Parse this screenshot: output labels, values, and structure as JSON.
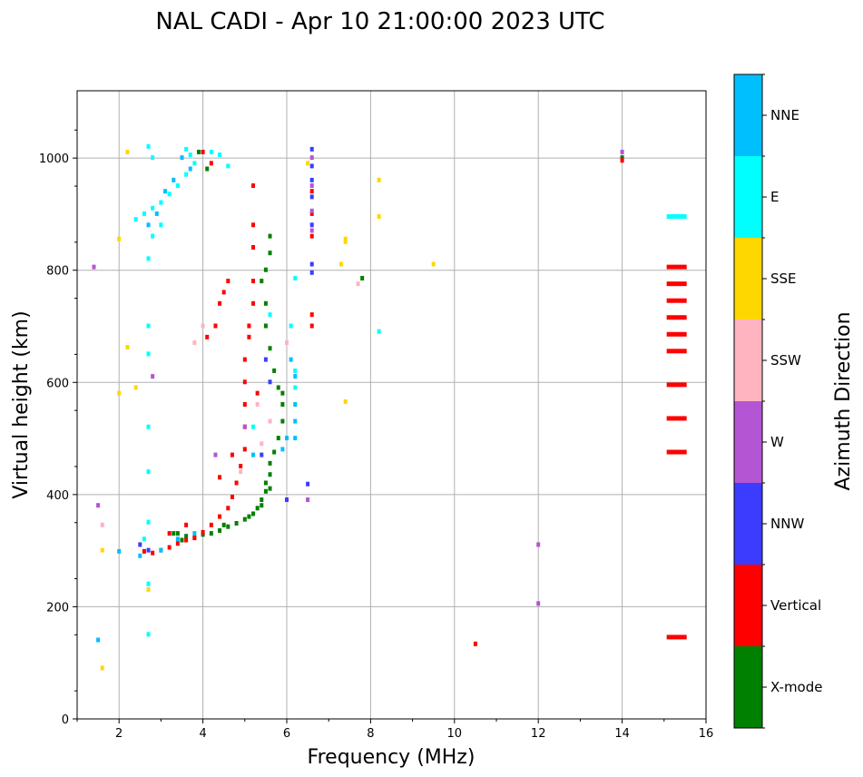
{
  "chart_data": {
    "type": "scatter",
    "title": "NAL CADI - Apr 10 21:00:00 2023 UTC",
    "xlabel": "Frequency (MHz)",
    "ylabel": "Virtual height (km)",
    "xlim": [
      1,
      16
    ],
    "ylim": [
      0,
      1120
    ],
    "xticks": [
      2,
      4,
      6,
      8,
      10,
      12,
      14,
      16
    ],
    "yticks": [
      0,
      200,
      400,
      600,
      800,
      1000
    ],
    "grid": true,
    "colorbar": {
      "label": "Azimuth Direction",
      "categories": [
        {
          "name": "X-mode",
          "color": "#008000"
        },
        {
          "name": "Vertical",
          "color": "#ff0000"
        },
        {
          "name": "NNW",
          "color": "#3c3cff"
        },
        {
          "name": "W",
          "color": "#b455d4"
        },
        {
          "name": "SSW",
          "color": "#ffb4c0"
        },
        {
          "name": "SSE",
          "color": "#ffd700"
        },
        {
          "name": "E",
          "color": "#00ffff"
        },
        {
          "name": "NNE",
          "color": "#00bfff"
        }
      ]
    },
    "series": [
      {
        "name": "X-mode",
        "points": [
          [
            3.4,
            330
          ],
          [
            3.6,
            325
          ],
          [
            3.8,
            322
          ],
          [
            4.0,
            328
          ],
          [
            4.2,
            330
          ],
          [
            4.4,
            335
          ],
          [
            4.6,
            342
          ],
          [
            4.8,
            348
          ],
          [
            5.0,
            355
          ],
          [
            5.2,
            365
          ],
          [
            5.3,
            375
          ],
          [
            5.4,
            390
          ],
          [
            5.5,
            405
          ],
          [
            5.5,
            420
          ],
          [
            5.6,
            435
          ],
          [
            5.6,
            455
          ],
          [
            5.7,
            475
          ],
          [
            5.8,
            500
          ],
          [
            5.9,
            530
          ],
          [
            5.9,
            560
          ],
          [
            5.8,
            590
          ],
          [
            5.7,
            620
          ],
          [
            5.6,
            660
          ],
          [
            5.5,
            700
          ],
          [
            5.5,
            740
          ],
          [
            5.4,
            780
          ],
          [
            5.5,
            800
          ],
          [
            5.6,
            830
          ],
          [
            5.6,
            860
          ],
          [
            3.3,
            330
          ],
          [
            3.5,
            318
          ],
          [
            4.5,
            345
          ],
          [
            5.1,
            360
          ],
          [
            5.4,
            380
          ],
          [
            5.6,
            410
          ],
          [
            5.9,
            580
          ],
          [
            4.1,
            980
          ],
          [
            3.9,
            1010
          ],
          [
            14.0,
            1000
          ],
          [
            7.8,
            785
          ]
        ]
      },
      {
        "name": "Vertical",
        "points": [
          [
            2.8,
            295
          ],
          [
            3.0,
            300
          ],
          [
            3.2,
            305
          ],
          [
            3.4,
            312
          ],
          [
            3.6,
            318
          ],
          [
            3.8,
            322
          ],
          [
            4.0,
            332
          ],
          [
            4.2,
            345
          ],
          [
            4.4,
            360
          ],
          [
            4.6,
            375
          ],
          [
            4.7,
            395
          ],
          [
            4.8,
            420
          ],
          [
            4.9,
            450
          ],
          [
            5.0,
            480
          ],
          [
            5.0,
            520
          ],
          [
            5.0,
            560
          ],
          [
            5.0,
            600
          ],
          [
            5.0,
            640
          ],
          [
            5.1,
            680
          ],
          [
            5.1,
            700
          ],
          [
            5.2,
            740
          ],
          [
            5.2,
            780
          ],
          [
            4.6,
            780
          ],
          [
            4.4,
            740
          ],
          [
            4.3,
            700
          ],
          [
            4.1,
            680
          ],
          [
            4.5,
            760
          ],
          [
            6.6,
            860
          ],
          [
            6.6,
            900
          ],
          [
            6.6,
            940
          ],
          [
            6.6,
            720
          ],
          [
            6.6,
            700
          ],
          [
            5.2,
            950
          ],
          [
            5.2,
            880
          ],
          [
            5.2,
            840
          ],
          [
            4.0,
            1010
          ],
          [
            4.2,
            990
          ],
          [
            15.3,
            805
          ],
          [
            15.3,
            775
          ],
          [
            15.3,
            745
          ],
          [
            15.3,
            715
          ],
          [
            15.3,
            685
          ],
          [
            15.3,
            655
          ],
          [
            15.3,
            595
          ],
          [
            15.3,
            535
          ],
          [
            15.3,
            475
          ],
          [
            15.3,
            145
          ],
          [
            10.5,
            133
          ],
          [
            14.0,
            995
          ],
          [
            5.3,
            580
          ],
          [
            4.7,
            470
          ],
          [
            4.4,
            430
          ],
          [
            3.6,
            345
          ],
          [
            3.2,
            330
          ],
          [
            2.6,
            298
          ]
        ]
      },
      {
        "name": "NNW",
        "points": [
          [
            6.6,
            1015
          ],
          [
            6.6,
            985
          ],
          [
            6.6,
            960
          ],
          [
            6.6,
            930
          ],
          [
            6.6,
            880
          ],
          [
            6.6,
            810
          ],
          [
            6.6,
            795
          ],
          [
            6.5,
            418
          ],
          [
            5.4,
            470
          ],
          [
            5.6,
            600
          ],
          [
            2.7,
            300
          ],
          [
            2.5,
            310
          ],
          [
            5.5,
            640
          ],
          [
            6.0,
            390
          ]
        ]
      },
      {
        "name": "W",
        "points": [
          [
            6.6,
            1000
          ],
          [
            6.6,
            950
          ],
          [
            6.6,
            905
          ],
          [
            6.6,
            870
          ],
          [
            6.5,
            390
          ],
          [
            12.0,
            310
          ],
          [
            12.0,
            205
          ],
          [
            14.0,
            1010
          ],
          [
            2.8,
            610
          ],
          [
            1.4,
            805
          ],
          [
            1.5,
            380
          ],
          [
            4.3,
            470
          ],
          [
            5.0,
            520
          ]
        ]
      },
      {
        "name": "SSW",
        "points": [
          [
            4.0,
            700
          ],
          [
            3.8,
            670
          ],
          [
            5.4,
            490
          ],
          [
            5.6,
            530
          ],
          [
            7.7,
            775
          ],
          [
            6.0,
            670
          ],
          [
            4.9,
            440
          ],
          [
            5.3,
            560
          ],
          [
            1.6,
            345
          ]
        ]
      },
      {
        "name": "SSE",
        "points": [
          [
            2.0,
            855
          ],
          [
            2.2,
            1010
          ],
          [
            2.0,
            580
          ],
          [
            8.2,
            960
          ],
          [
            8.2,
            895
          ],
          [
            7.4,
            855
          ],
          [
            7.4,
            850
          ],
          [
            7.4,
            565
          ],
          [
            7.3,
            810
          ],
          [
            9.5,
            810
          ],
          [
            6.5,
            990
          ],
          [
            2.7,
            230
          ],
          [
            1.6,
            90
          ],
          [
            1.6,
            300
          ],
          [
            2.4,
            590
          ],
          [
            2.2,
            662
          ]
        ]
      },
      {
        "name": "E",
        "points": [
          [
            2.4,
            890
          ],
          [
            2.6,
            900
          ],
          [
            2.8,
            910
          ],
          [
            3.0,
            920
          ],
          [
            3.2,
            935
          ],
          [
            3.4,
            950
          ],
          [
            3.6,
            970
          ],
          [
            3.8,
            990
          ],
          [
            3.7,
            1005
          ],
          [
            3.6,
            1015
          ],
          [
            4.2,
            1010
          ],
          [
            4.4,
            1005
          ],
          [
            3.0,
            880
          ],
          [
            2.8,
            860
          ],
          [
            2.7,
            820
          ],
          [
            2.7,
            700
          ],
          [
            2.7,
            520
          ],
          [
            2.7,
            440
          ],
          [
            2.7,
            350
          ],
          [
            2.7,
            240
          ],
          [
            2.7,
            150
          ],
          [
            6.2,
            785
          ],
          [
            6.1,
            700
          ],
          [
            6.2,
            620
          ],
          [
            6.2,
            590
          ],
          [
            8.2,
            690
          ],
          [
            15.3,
            895
          ],
          [
            5.6,
            720
          ],
          [
            5.2,
            520
          ],
          [
            2.7,
            650
          ],
          [
            2.6,
            320
          ],
          [
            4.6,
            985
          ],
          [
            2.7,
            1020
          ],
          [
            2.8,
            1000
          ]
        ]
      },
      {
        "name": "NNE",
        "points": [
          [
            3.5,
            1000
          ],
          [
            3.7,
            980
          ],
          [
            3.3,
            960
          ],
          [
            3.1,
            940
          ],
          [
            2.9,
            900
          ],
          [
            2.7,
            880
          ],
          [
            6.2,
            530
          ],
          [
            6.2,
            500
          ],
          [
            6.2,
            560
          ],
          [
            6.1,
            640
          ],
          [
            6.2,
            610
          ],
          [
            5.9,
            480
          ],
          [
            2.0,
            298
          ],
          [
            1.5,
            140
          ],
          [
            3.0,
            300
          ],
          [
            3.4,
            320
          ],
          [
            3.8,
            330
          ],
          [
            5.2,
            470
          ],
          [
            6.0,
            500
          ],
          [
            2.5,
            290
          ]
        ]
      }
    ]
  }
}
